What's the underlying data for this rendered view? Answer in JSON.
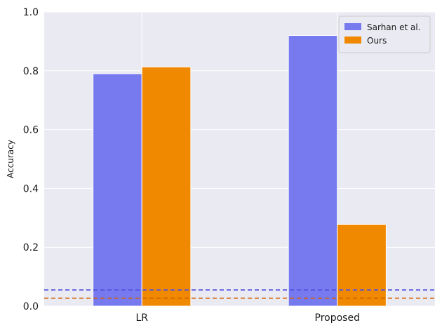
{
  "chart_data": {
    "type": "bar",
    "categories": [
      "LR",
      "Proposed"
    ],
    "series": [
      {
        "name": "Sarhan et al.",
        "values": [
          0.79,
          0.92
        ],
        "color": "#7779ef"
      },
      {
        "name": "Ours",
        "values": [
          0.813,
          0.278
        ],
        "color": "#f08800"
      }
    ],
    "reference_lines": [
      {
        "value": 0.055,
        "color": "#4f51e0",
        "style": "dashed"
      },
      {
        "value": 0.027,
        "color": "#d45f00",
        "style": "dashed"
      }
    ],
    "xlabel": "",
    "ylabel": "Accuracy",
    "ylim": [
      0,
      1.0
    ],
    "yticks": [
      "0.0",
      "0.2",
      "0.4",
      "0.6",
      "0.8",
      "1.0"
    ],
    "grid": true,
    "legend_position": "top-right",
    "background": "#eaeaf2"
  }
}
